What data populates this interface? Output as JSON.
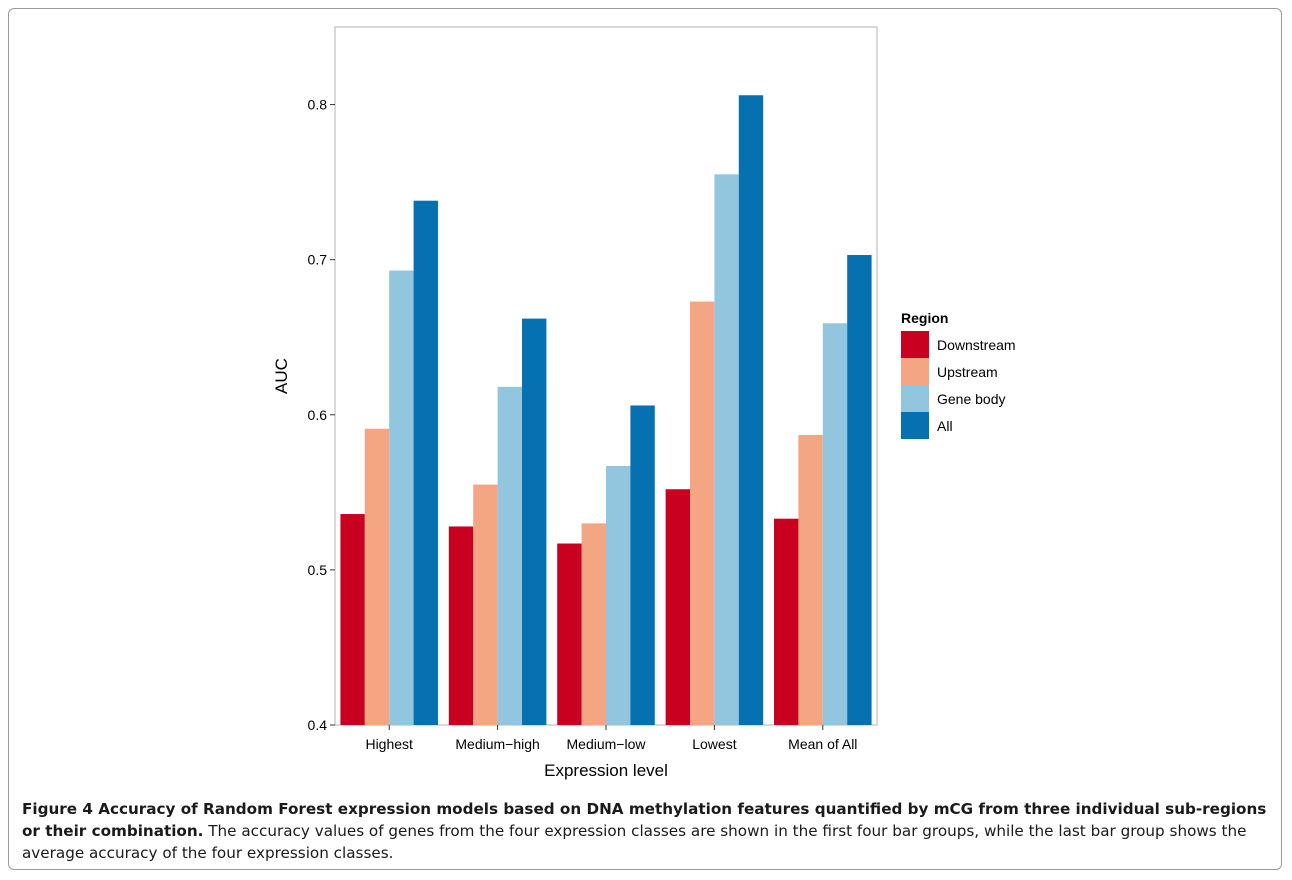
{
  "chart_data": {
    "type": "bar",
    "xlabel": "Expression level",
    "ylabel": "AUC",
    "ylim": [
      0.4,
      0.85
    ],
    "yticks": [
      "0.4",
      "0.5",
      "0.6",
      "0.7",
      "0.8"
    ],
    "categories": [
      "Highest",
      "Medium−high",
      "Medium−low",
      "Lowest",
      "Mean of All"
    ],
    "legend_title": "Region",
    "legend_position": "right",
    "grid": false,
    "series": [
      {
        "name": "Downstream",
        "color": "#ca0020",
        "values": [
          0.536,
          0.528,
          0.517,
          0.552,
          0.533
        ]
      },
      {
        "name": "Upstream",
        "color": "#f4a582",
        "values": [
          0.591,
          0.555,
          0.53,
          0.673,
          0.587
        ]
      },
      {
        "name": "Gene body",
        "color": "#92c5de",
        "values": [
          0.693,
          0.618,
          0.567,
          0.755,
          0.659
        ]
      },
      {
        "name": "All",
        "color": "#0571b0",
        "values": [
          0.738,
          0.662,
          0.606,
          0.806,
          0.703
        ]
      }
    ]
  },
  "caption": {
    "lead": "Figure 4 Accuracy of Random Forest expression models based on DNA methylation features quantified by mCG from three individual sub-regions or their combination.",
    "body": " The accuracy values of genes from the four expression classes are shown in the first four bar groups, while the last bar group shows the average accuracy of the four expression classes."
  }
}
